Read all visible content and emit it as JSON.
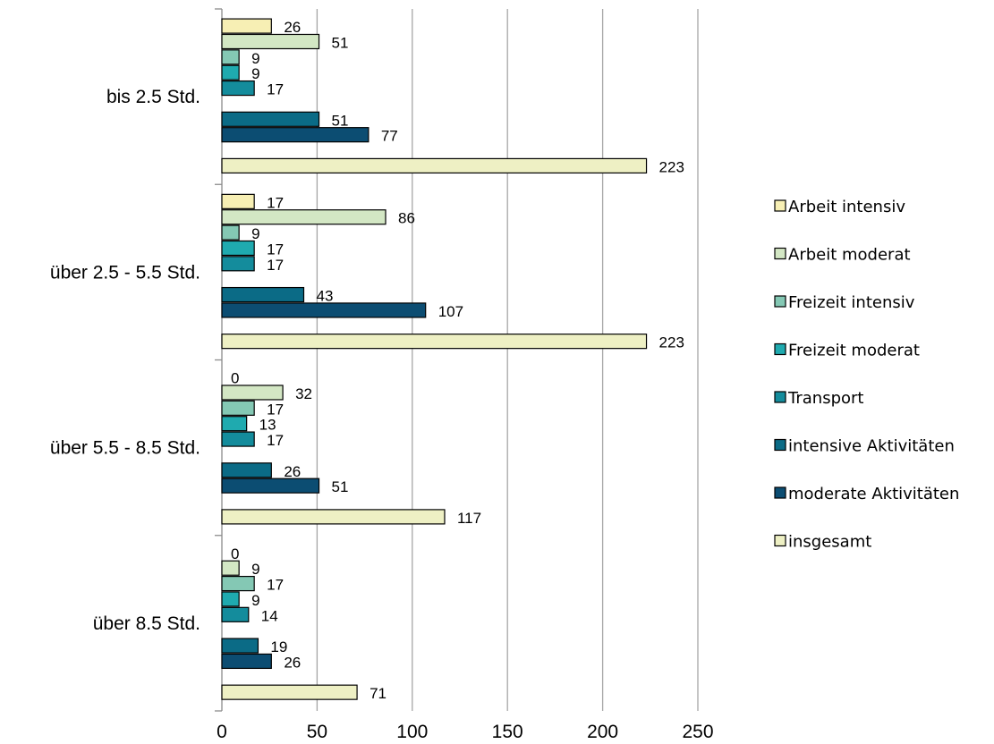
{
  "chart_data": {
    "type": "bar",
    "orientation": "horizontal",
    "categories": [
      "bis 2.5 Std.",
      "über 2.5 - 5.5 Std.",
      "über 5.5 - 8.5 Std.",
      "über 8.5 Std."
    ],
    "xlim": [
      0,
      250
    ],
    "x_ticks": [
      "0",
      "50",
      "100",
      "150",
      "200",
      "250"
    ],
    "grid": true,
    "legend_position": "right",
    "series": [
      {
        "name": "Arbeit intensiv",
        "color": "#f7efb4",
        "values": [
          26,
          17,
          0,
          0
        ]
      },
      {
        "name": "Arbeit moderat",
        "color": "#d3e7c4",
        "values": [
          51,
          86,
          32,
          9
        ]
      },
      {
        "name": "Freizeit intensiv",
        "color": "#84c8b4",
        "values": [
          9,
          9,
          17,
          17
        ]
      },
      {
        "name": "Freizeit moderat",
        "color": "#1faaaf",
        "values": [
          9,
          17,
          13,
          9
        ]
      },
      {
        "name": "Transport",
        "color": "#148c9c",
        "values": [
          17,
          17,
          17,
          14
        ]
      },
      {
        "name": "intensive Aktivitäten",
        "color": "#0b6b86",
        "values": [
          51,
          43,
          26,
          19
        ]
      },
      {
        "name": "moderate Aktivitäten",
        "color": "#0c4d72",
        "values": [
          77,
          107,
          51,
          26
        ]
      },
      {
        "name": "insgesamt",
        "color": "#eef0c4",
        "values": [
          223,
          223,
          117,
          71
        ]
      }
    ]
  }
}
